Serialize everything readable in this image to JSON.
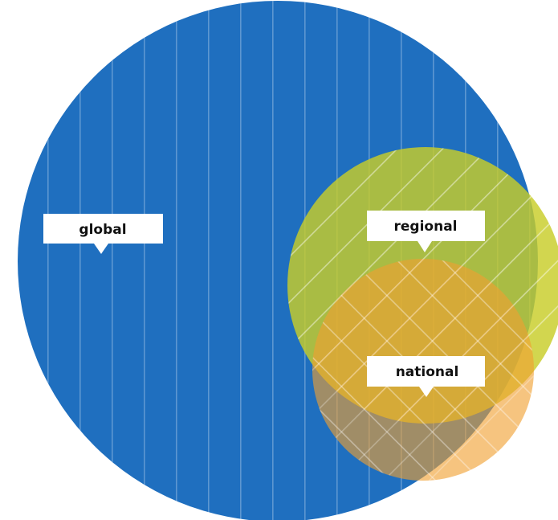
{
  "diagram": {
    "type": "nested-circles",
    "colors": {
      "global": "#1f6fbf",
      "regional": "#c8cd28",
      "national": "#f0a030",
      "label_background": "#ffffff",
      "label_text": "#111111"
    },
    "circles": [
      {
        "id": "global",
        "label": "global"
      },
      {
        "id": "regional",
        "label": "regional"
      },
      {
        "id": "national",
        "label": "national"
      }
    ]
  }
}
